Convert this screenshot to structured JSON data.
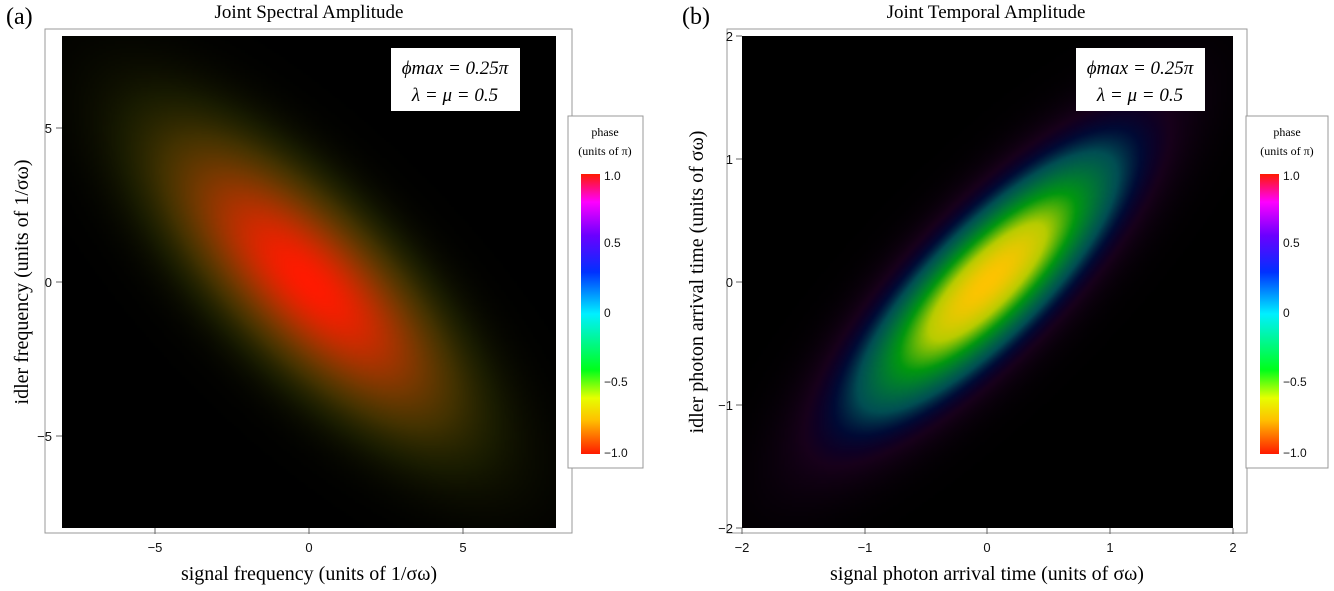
{
  "chart_data": [
    {
      "type": "heatmap",
      "panel_label": "(a)",
      "title": "Joint Spectral Amplitude",
      "xlabel": "signal frequency (units of 1/σω)",
      "ylabel": "idler frequency (units of 1/σω)",
      "xlim": [
        -8,
        8
      ],
      "ylim": [
        -8,
        8
      ],
      "xticks": [
        -5,
        0,
        5
      ],
      "yticks": [
        -5,
        0,
        5
      ],
      "xtick_labels": [
        "−5",
        "0",
        "5"
      ],
      "ytick_labels": [
        "−5",
        "0",
        "5"
      ],
      "annotation": [
        "ϕmax = 0.25π",
        "λ = μ = 0.5"
      ],
      "distribution": {
        "center": [
          0,
          0
        ],
        "orientation": "anti-diagonal",
        "sigma_major": 3.8,
        "sigma_minor": 1.45
      },
      "phase_range": [
        -1.0,
        -0.6
      ],
      "colorbar": {
        "title_line1": "phase",
        "title_line2": "(units of π)",
        "range": [
          -1.0,
          1.0
        ],
        "ticks": [
          1.0,
          0.5,
          0,
          -0.5,
          -1.0
        ],
        "tick_labels": [
          "1.0",
          "0.5",
          "0",
          "−0.5",
          "−1.0"
        ]
      }
    },
    {
      "type": "heatmap",
      "panel_label": "(b)",
      "title": "Joint Temporal Amplitude",
      "xlabel": "signal photon arrival time (units of σω)",
      "ylabel": "idler photon arrival time (units of σω)",
      "xlim": [
        -2,
        2
      ],
      "ylim": [
        -2,
        2
      ],
      "xticks": [
        -2,
        -1,
        0,
        1,
        2
      ],
      "yticks": [
        -2,
        -1,
        0,
        1,
        2
      ],
      "xtick_labels": [
        "−2",
        "−1",
        "0",
        "1",
        "2"
      ],
      "ytick_labels": [
        "−2",
        "−1",
        "0",
        "1",
        "2"
      ],
      "annotation": [
        "ϕmax = 0.25π",
        "λ = μ = 0.5"
      ],
      "distribution": {
        "center": [
          0,
          0
        ],
        "orientation": "diagonal",
        "sigma_major": 0.95,
        "sigma_minor": 0.3
      },
      "phase_range": [
        -0.75,
        0.75
      ],
      "colorbar": {
        "title_line1": "phase",
        "title_line2": "(units of π)",
        "range": [
          -1.0,
          1.0
        ],
        "ticks": [
          1.0,
          0.5,
          0,
          -0.5,
          -1.0
        ],
        "tick_labels": [
          "1.0",
          "0.5",
          "0",
          "−0.5",
          "−1.0"
        ]
      }
    }
  ],
  "colors": {
    "background": "#000000",
    "frame": "#999999",
    "annotation_bg": "#ffffff",
    "colorbar_stops": [
      "#ff1a00",
      "#ffbf00",
      "#e6ff00",
      "#00ff1a",
      "#00f0ff",
      "#0030ff",
      "#6a00ff",
      "#ff00ff",
      "#ff1a00"
    ]
  }
}
